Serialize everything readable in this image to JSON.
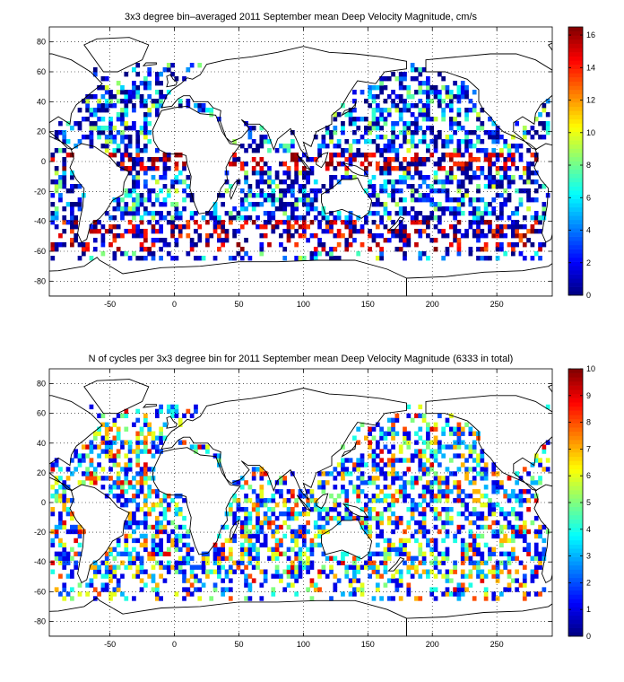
{
  "chart_data": [
    {
      "type": "heatmap",
      "title": "3x3 degree bin–averaged 2011 September mean Deep Velocity Magnitude, cm/s",
      "xlabel": "",
      "ylabel": "",
      "xlim": [
        -97,
        293
      ],
      "ylim": [
        -90,
        90
      ],
      "xticks": [
        -50,
        0,
        50,
        100,
        150,
        200,
        250
      ],
      "yticks": [
        80,
        60,
        40,
        20,
        0,
        -20,
        -40,
        -60,
        -80
      ],
      "colorbar": {
        "min": 0,
        "max": 16.5,
        "ticks": [
          0,
          2,
          4,
          6,
          8,
          10,
          12,
          14,
          16
        ],
        "colormap": "jet"
      },
      "grid": true,
      "bin_size_deg": 3
    },
    {
      "type": "heatmap",
      "title": "N of cycles per 3x3 degree bin for 2011 September mean Deep Velocity Magnitude (6333 in total)",
      "xlabel": "",
      "ylabel": "",
      "xlim": [
        -97,
        293
      ],
      "ylim": [
        -90,
        90
      ],
      "xticks": [
        -50,
        0,
        50,
        100,
        150,
        200,
        250
      ],
      "yticks": [
        80,
        60,
        40,
        20,
        0,
        -20,
        -40,
        -60,
        -80
      ],
      "colorbar": {
        "min": 0,
        "max": 10,
        "ticks": [
          0,
          1,
          2,
          3,
          4,
          5,
          6,
          7,
          8,
          9,
          10
        ],
        "colormap": "jet"
      },
      "grid": true,
      "bin_size_deg": 3,
      "total_cycles": 6333
    }
  ]
}
